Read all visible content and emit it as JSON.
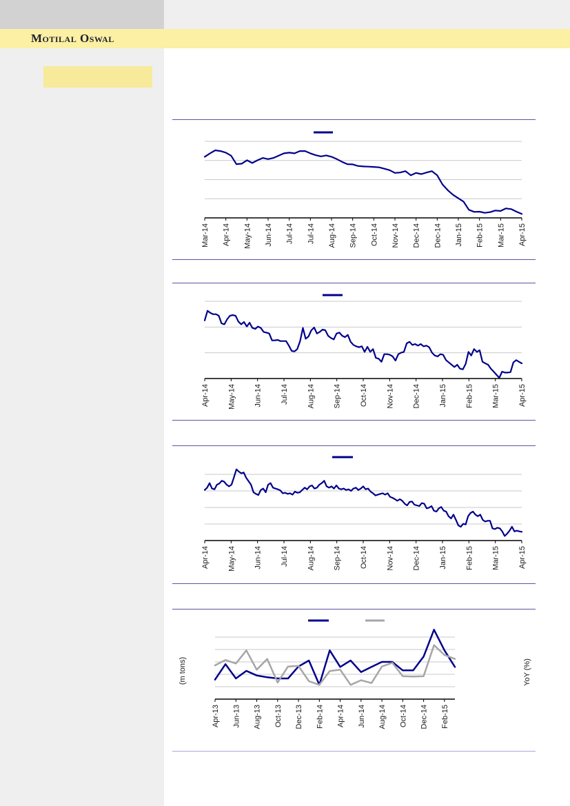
{
  "header": {
    "brand": "Motilal Oswal"
  },
  "colors": {
    "brand_band": "#FBF0A3",
    "sidebar": "#EFEFEF",
    "top_gray_block": "#D2D2D2",
    "sidebar_highlight": "#F7EA9A",
    "separator_purple": "#5B52A4",
    "separator_purple_light": "#ACA4D9",
    "series_navy": "#00008B",
    "series_gray": "#A6A6A6",
    "gridline": "#C9C9C9",
    "axis": "#000000",
    "label_text": "#1A1A1A"
  },
  "chart_data": [
    {
      "id": "chart-1",
      "type": "line",
      "title": "",
      "legend": {
        "position": "top-center",
        "markers": [
          {
            "label": "",
            "color": "#00008B"
          }
        ]
      },
      "x_tick_labels": [
        "Mar-14",
        "Apr-14",
        "May-14",
        "Jun-14",
        "Jul-14",
        "Jul-14",
        "Aug-14",
        "Sep-14",
        "Oct-14",
        "Nov-14",
        "Dec-14",
        "Dec-14",
        "Jan-15",
        "Feb-15",
        "Mar-15",
        "Apr-15"
      ],
      "y_axis": {
        "tick_labels_visible": false,
        "gridlines": 4,
        "scale": "relative % of plot height"
      },
      "ylim": [
        0,
        100
      ],
      "series": [
        {
          "name": "",
          "color": "#00008B",
          "values": [
            79.8,
            84.3,
            88.3,
            87.3,
            85.2,
            81.3,
            70.2,
            70.8,
            75.3,
            71.7,
            75.3,
            78.3,
            76.8,
            78.3,
            81.3,
            84.3,
            85.2,
            84.3,
            87.3,
            87.3,
            84.3,
            81.9,
            80.4,
            81.6,
            79.8,
            76.8,
            73.2,
            70.2,
            69.9,
            67.8,
            67.2,
            66.9,
            66.6,
            66,
            64.2,
            62.3,
            58.7,
            59.3,
            61.1,
            55.7,
            58.7,
            57.2,
            59.3,
            61.1,
            55.7,
            43.7,
            36.1,
            30.1,
            25.6,
            21.1,
            10.5,
            7.8,
            8.1,
            6.6,
            7.5,
            9.6,
            9,
            12.3,
            11.4,
            8.1,
            5.1
          ]
        }
      ]
    },
    {
      "id": "chart-2",
      "type": "line",
      "title": "",
      "legend": {
        "position": "top-center",
        "markers": [
          {
            "label": "",
            "color": "#00008B"
          }
        ]
      },
      "x_tick_labels": [
        "Apr-14",
        "May-14",
        "Jun-14",
        "Jul-14",
        "Aug-14",
        "Sep-14",
        "Oct-14",
        "Nov-14",
        "Dec-14",
        "Jan-15",
        "Feb-15",
        "Mar-15",
        "Apr-15"
      ],
      "y_axis": {
        "tick_labels_visible": false,
        "gridlines": 3,
        "scale": "relative % of plot height"
      },
      "ylim": [
        0,
        100
      ],
      "series": [
        {
          "name": "",
          "color": "#00008B",
          "values": [
            75.3,
            87.8,
            85.1,
            83.3,
            83.3,
            81.3,
            71.4,
            70.2,
            76.8,
            81.3,
            82.1,
            81.3,
            73.8,
            70.2,
            73.2,
            67.3,
            72.3,
            65.5,
            64.3,
            67.3,
            65.5,
            60.4,
            59.5,
            58.3,
            49.4,
            49.4,
            50,
            48.5,
            48.5,
            48.5,
            42.6,
            35.7,
            35.1,
            38.1,
            48.5,
            65.5,
            51.5,
            54.5,
            62.5,
            66.1,
            58.3,
            60.4,
            63.4,
            62.5,
            55.4,
            52.4,
            50.6,
            58.3,
            59.5,
            55.4,
            53.6,
            56.5,
            47.6,
            43.5,
            41.7,
            40.5,
            41.7,
            34.5,
            41.1,
            34.5,
            38.1,
            26.8,
            25.6,
            21.7,
            31.5,
            31.5,
            30.7,
            28.6,
            23.2,
            31.5,
            33.6,
            34.5,
            45.5,
            47.6,
            43.5,
            44.6,
            42.6,
            44.6,
            41.7,
            42.6,
            40.5,
            33.6,
            29.8,
            28.6,
            31.5,
            30.7,
            23.8,
            20.8,
            17.9,
            14.9,
            17.9,
            12.8,
            11.9,
            18.8,
            34.5,
            29.8,
            38.1,
            34.5,
            36.6,
            21.7,
            19.6,
            17.9,
            12.8,
            8.9,
            4.8,
            0.9,
            8.9,
            7.7,
            7.7,
            8.3,
            20.8,
            23.8,
            21.7,
            19.6
          ]
        }
      ]
    },
    {
      "id": "chart-3",
      "type": "line",
      "title": "",
      "legend": {
        "position": "top-center",
        "markers": [
          {
            "label": "",
            "color": "#00008B"
          }
        ]
      },
      "x_tick_labels": [
        "Apr-14",
        "May-14",
        "Jun-14",
        "Jul-14",
        "Aug-14",
        "Sep-14",
        "Oct-14",
        "Nov-14",
        "Dec-14",
        "Jan-15",
        "Feb-15",
        "Mar-15",
        "Apr-15"
      ],
      "y_axis": {
        "tick_labels_visible": false,
        "gridlines": 4,
        "scale": "relative % of plot height"
      },
      "ylim": [
        0,
        100
      ],
      "series": [
        {
          "name": "",
          "color": "#00008B",
          "values": [
            76.4,
            79.9,
            86.8,
            78.5,
            77.4,
            84.4,
            86.1,
            90.3,
            88.9,
            84.4,
            81.9,
            84.4,
            95.8,
            107.6,
            104.2,
            101.7,
            102.8,
            94.8,
            89.6,
            84.4,
            72.9,
            70.5,
            68.8,
            76.4,
            78.5,
            72.9,
            84.4,
            86.8,
            79.9,
            78.5,
            77.4,
            75.7,
            71.5,
            72.2,
            70.5,
            71.5,
            69.4,
            74,
            72.2,
            72.9,
            76.4,
            79.9,
            77.4,
            81.9,
            83.3,
            78.5,
            79.9,
            84.4,
            86.8,
            90.3,
            81.9,
            79.9,
            81.9,
            78.5,
            83.3,
            78.5,
            77.4,
            78.5,
            76.4,
            77.4,
            75,
            78.5,
            79.9,
            76.4,
            78.5,
            81.9,
            77.4,
            78.5,
            74,
            71.5,
            68.1,
            69.4,
            70.5,
            71.5,
            69.4,
            71.5,
            66,
            64.6,
            62.5,
            60.1,
            62.5,
            60.1,
            55.6,
            53.1,
            58.3,
            59,
            54.2,
            53.1,
            52.1,
            56.6,
            55.6,
            48.6,
            49.7,
            52.1,
            45.1,
            43.8,
            48.6,
            50.7,
            45.1,
            43.8,
            36.8,
            33.3,
            39.2,
            31.3,
            22.9,
            20.8,
            25.3,
            24.3,
            36.8,
            41.7,
            43.8,
            39.2,
            36.8,
            39.2,
            31.3,
            28.8,
            29.9,
            29.9,
            18.4,
            17.4,
            19.4,
            18.4,
            13.9,
            6.9,
            10.4,
            14.9,
            20.8,
            13.9,
            14.9,
            13.9,
            13.2
          ]
        }
      ]
    },
    {
      "id": "chart-4",
      "type": "line",
      "title": "",
      "ylabel_left": "(m tons)",
      "ylabel_right": "YoY (%)",
      "legend": {
        "position": "top-center",
        "markers": [
          {
            "label": "",
            "color": "#00008B"
          },
          {
            "label": "",
            "color": "#A6A6A6"
          }
        ]
      },
      "x": [
        "Apr-13",
        "May-13",
        "Jun-13",
        "Jul-13",
        "Aug-13",
        "Sep-13",
        "Oct-13",
        "Nov-13",
        "Dec-13",
        "Jan-14",
        "Feb-14",
        "Mar-14",
        "Apr-14",
        "May-14",
        "Jun-14",
        "Jul-14",
        "Aug-14",
        "Sep-14",
        "Oct-14",
        "Nov-14",
        "Dec-14",
        "Jan-15",
        "Feb-15",
        "Mar-15"
      ],
      "x_tick_labels": [
        "Apr-13",
        "Jun-13",
        "Aug-13",
        "Oct-13",
        "Dec-13",
        "Feb-14",
        "Apr-14",
        "Jun-14",
        "Aug-14",
        "Oct-14",
        "Dec-14",
        "Feb-15"
      ],
      "y_axis": {
        "tick_labels_visible": false,
        "gridlines": 5,
        "scale": "relative % of plot height"
      },
      "ylim": [
        0,
        100
      ],
      "series": [
        {
          "name": "",
          "color": "#00008B",
          "values": [
            31.5,
            56.3,
            33.3,
            45.6,
            38.1,
            35.2,
            33.3,
            33.3,
            52.6,
            62.2,
            23,
            78.5,
            51.9,
            62.2,
            43.7,
            51.9,
            60,
            60,
            46.3,
            46.3,
            68.5,
            111.9,
            78.5,
            51.9
          ]
        },
        {
          "name": "",
          "color": "#A6A6A6",
          "values": [
            54.4,
            63,
            57.4,
            78.5,
            47.4,
            64.8,
            26.7,
            52.6,
            53.7,
            28.9,
            23,
            45.2,
            47.4,
            23,
            30.4,
            25.9,
            52.6,
            58.5,
            37,
            36.3,
            37,
            87,
            71.1,
            64.8
          ]
        }
      ]
    }
  ]
}
